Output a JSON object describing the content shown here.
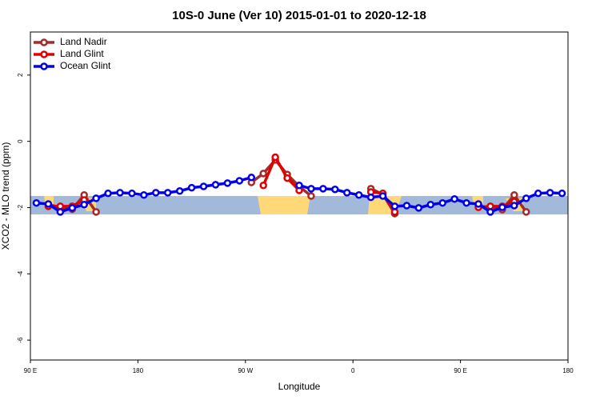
{
  "chart_data": {
    "type": "line",
    "title": "10S-0 June (Ver 10)   2015-01-01 to 2020-12-18",
    "x_label": "Longitude",
    "y_label": "XCO2 - MLO trend (ppm)",
    "x": [
      95,
      105,
      115,
      125,
      135,
      145,
      155,
      165,
      175,
      185,
      195,
      205,
      215,
      225,
      235,
      245,
      255,
      265,
      275,
      285,
      295,
      305,
      315,
      325,
      335,
      345,
      355,
      365,
      375,
      385,
      395,
      405,
      415,
      425,
      435,
      445,
      455,
      465,
      475,
      485,
      495,
      505,
      515,
      525,
      535
    ],
    "xlim": [
      90,
      540
    ],
    "xticks": [
      {
        "value": 90,
        "label": "90 E"
      },
      {
        "value": 180,
        "label": "180"
      },
      {
        "value": 270,
        "label": "90 W"
      },
      {
        "value": 360,
        "label": "0"
      },
      {
        "value": 450,
        "label": "90 E"
      },
      {
        "value": 540,
        "label": "180"
      }
    ],
    "ylim": [
      -6.6,
      3.3
    ],
    "yticks": [
      -6,
      -4,
      -2,
      0,
      2
    ],
    "legend": "top-left",
    "series": [
      {
        "name": "Land Nadir",
        "color": "#a52a2a",
        "values": [
          null,
          -1.9,
          -2.0,
          -2.05,
          -1.62,
          -2.13,
          null,
          null,
          null,
          null,
          null,
          null,
          null,
          null,
          null,
          null,
          null,
          null,
          -1.24,
          -0.97,
          -0.56,
          -1.0,
          -1.36,
          -1.65,
          null,
          null,
          null,
          null,
          -1.43,
          -1.6,
          -2.18,
          null,
          null,
          null,
          null,
          null,
          null,
          -1.94,
          -2.01,
          -2.06,
          -1.62,
          -2.13,
          null,
          null,
          null
        ]
      },
      {
        "name": "Land Glint",
        "color": "#e00000",
        "values": [
          null,
          -1.96,
          -1.96,
          -1.96,
          -1.77,
          null,
          null,
          null,
          null,
          null,
          null,
          null,
          null,
          null,
          null,
          null,
          null,
          null,
          null,
          -1.33,
          -0.48,
          -1.11,
          -1.48,
          null,
          null,
          null,
          null,
          null,
          -1.53,
          -1.57,
          -2.13,
          null,
          null,
          null,
          null,
          null,
          null,
          -1.99,
          -1.96,
          -1.96,
          -1.82,
          null,
          null,
          null,
          null
        ]
      },
      {
        "name": "Ocean Glint",
        "color": "#0000ee",
        "values": [
          -1.86,
          -1.89,
          -2.13,
          -2.01,
          -1.91,
          -1.72,
          -1.57,
          -1.55,
          -1.57,
          -1.62,
          -1.55,
          -1.55,
          -1.5,
          -1.4,
          -1.36,
          -1.31,
          -1.26,
          -1.19,
          -1.09,
          null,
          null,
          null,
          -1.33,
          -1.43,
          -1.43,
          -1.45,
          -1.55,
          -1.62,
          -1.69,
          -1.65,
          -1.96,
          -1.94,
          -2.01,
          -1.91,
          -1.86,
          -1.74,
          -1.86,
          -1.89,
          -2.13,
          -1.99,
          -1.94,
          -1.72,
          -1.57,
          -1.55,
          -1.57
        ]
      }
    ]
  }
}
